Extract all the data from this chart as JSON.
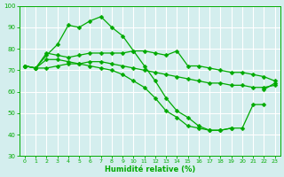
{
  "x": [
    0,
    1,
    2,
    3,
    4,
    5,
    6,
    7,
    8,
    9,
    10,
    11,
    12,
    13,
    14,
    15,
    16,
    17,
    18,
    19,
    20,
    21,
    22,
    23
  ],
  "line1": [
    72,
    71,
    77,
    82,
    91,
    90,
    93,
    95,
    90,
    86,
    79,
    72,
    65,
    57,
    51,
    48,
    44,
    42,
    42,
    43,
    null,
    null,
    61,
    64
  ],
  "line2": [
    72,
    71,
    78,
    77,
    76,
    77,
    78,
    78,
    78,
    78,
    79,
    79,
    78,
    77,
    79,
    72,
    72,
    71,
    70,
    69,
    69,
    68,
    67,
    65
  ],
  "line3": [
    72,
    71,
    71,
    72,
    73,
    73,
    74,
    74,
    73,
    72,
    71,
    70,
    69,
    68,
    67,
    66,
    65,
    64,
    64,
    63,
    63,
    62,
    62,
    63
  ],
  "line4": [
    72,
    71,
    75,
    75,
    74,
    73,
    72,
    71,
    70,
    68,
    65,
    62,
    57,
    51,
    48,
    44,
    43,
    42,
    42,
    43,
    43,
    54,
    54,
    null
  ],
  "xlabel": "Humidité relative (%)",
  "ylim": [
    30,
    100
  ],
  "xlim_min": -0.5,
  "xlim_max": 23.5,
  "yticks": [
    30,
    40,
    50,
    60,
    70,
    80,
    90,
    100
  ],
  "xticks": [
    0,
    1,
    2,
    3,
    4,
    5,
    6,
    7,
    8,
    9,
    10,
    11,
    12,
    13,
    14,
    15,
    16,
    17,
    18,
    19,
    20,
    21,
    22,
    23
  ],
  "line_color": "#00aa00",
  "bg_color": "#d4eeee",
  "grid_color": "#ffffff",
  "marker": "D",
  "marker_size": 2.5,
  "linewidth": 0.9
}
